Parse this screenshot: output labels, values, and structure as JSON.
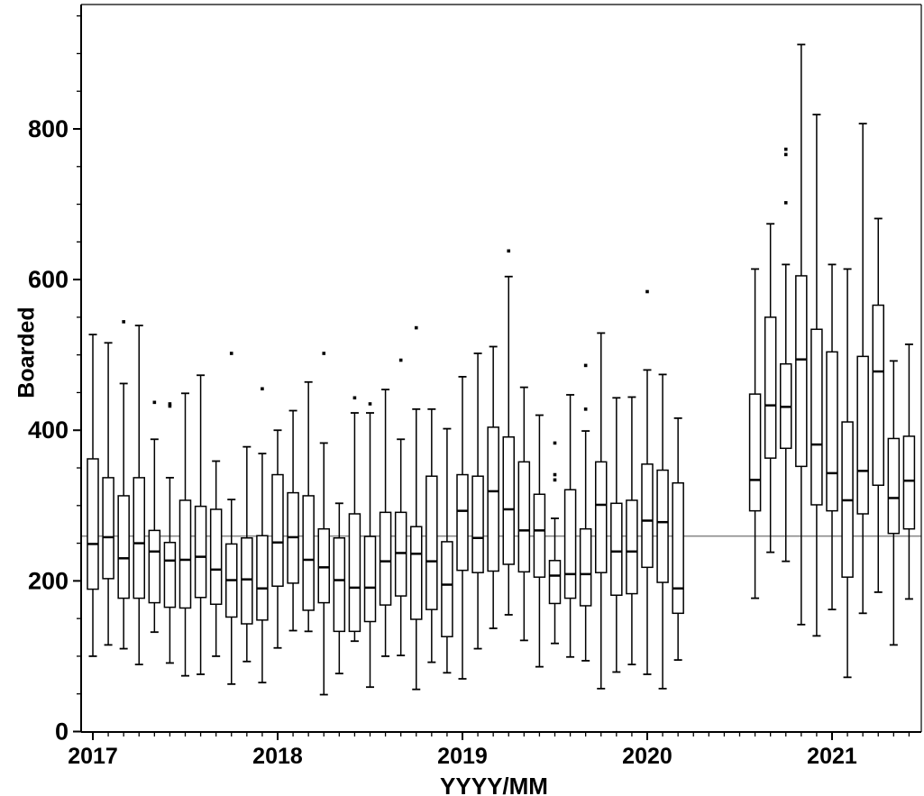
{
  "chart_data": {
    "type": "box",
    "title": "",
    "xlabel": "YYYY/MM",
    "ylabel": "Boarded",
    "ylim": [
      0,
      965
    ],
    "y_ticks": [
      0,
      200,
      400,
      600,
      800
    ],
    "y_minor_step": 50,
    "y_minor_max": 950,
    "x_year_ticks": [
      "2017",
      "2018",
      "2019",
      "2020",
      "2021"
    ],
    "x_month_count": 54,
    "grid": "off",
    "legend": "none",
    "reference_line": {
      "value": 259.5,
      "color": "#8c8c8c"
    },
    "frame_color": "#000000",
    "box_color": "#000000",
    "box_fill": "#ffffff",
    "boxes": [
      {
        "month": "2017/01",
        "min": 100,
        "q1": 189,
        "median": 249,
        "q3": 362,
        "max": 527,
        "outliers": []
      },
      {
        "month": "2017/02",
        "min": 115,
        "q1": 203,
        "median": 258,
        "q3": 337,
        "max": 516,
        "outliers": []
      },
      {
        "month": "2017/03",
        "min": 110,
        "q1": 177,
        "median": 230,
        "q3": 313,
        "max": 462,
        "outliers": [
          544
        ]
      },
      {
        "month": "2017/04",
        "min": 89,
        "q1": 177,
        "median": 250,
        "q3": 337,
        "max": 539,
        "outliers": []
      },
      {
        "month": "2017/05",
        "min": 132,
        "q1": 171,
        "median": 239,
        "q3": 267,
        "max": 388,
        "outliers": [
          437
        ]
      },
      {
        "month": "2017/06",
        "min": 91,
        "q1": 165,
        "median": 227,
        "q3": 251,
        "max": 337,
        "outliers": [
          435,
          432
        ]
      },
      {
        "month": "2017/07",
        "min": 74,
        "q1": 164,
        "median": 228,
        "q3": 307,
        "max": 449,
        "outliers": []
      },
      {
        "month": "2017/08",
        "min": 76,
        "q1": 178,
        "median": 232,
        "q3": 299,
        "max": 473,
        "outliers": []
      },
      {
        "month": "2017/09",
        "min": 100,
        "q1": 169,
        "median": 215,
        "q3": 295,
        "max": 359,
        "outliers": []
      },
      {
        "month": "2017/10",
        "min": 63,
        "q1": 152,
        "median": 201,
        "q3": 249,
        "max": 308,
        "outliers": [
          502
        ]
      },
      {
        "month": "2017/11",
        "min": 93,
        "q1": 143,
        "median": 202,
        "q3": 257,
        "max": 378,
        "outliers": []
      },
      {
        "month": "2017/12",
        "min": 65,
        "q1": 148,
        "median": 190,
        "q3": 260,
        "max": 369,
        "outliers": [
          455
        ]
      },
      {
        "month": "2018/01",
        "min": 111,
        "q1": 193,
        "median": 251,
        "q3": 341,
        "max": 400,
        "outliers": []
      },
      {
        "month": "2018/02",
        "min": 134,
        "q1": 197,
        "median": 258,
        "q3": 317,
        "max": 426,
        "outliers": []
      },
      {
        "month": "2018/03",
        "min": 133,
        "q1": 161,
        "median": 228,
        "q3": 313,
        "max": 464,
        "outliers": []
      },
      {
        "month": "2018/04",
        "min": 49,
        "q1": 171,
        "median": 218,
        "q3": 269,
        "max": 383,
        "outliers": [
          502
        ]
      },
      {
        "month": "2018/05",
        "min": 77,
        "q1": 133,
        "median": 201,
        "q3": 257,
        "max": 303,
        "outliers": []
      },
      {
        "month": "2018/06",
        "min": 120,
        "q1": 133,
        "median": 191,
        "q3": 289,
        "max": 423,
        "outliers": [
          443
        ]
      },
      {
        "month": "2018/07",
        "min": 59,
        "q1": 146,
        "median": 191,
        "q3": 259,
        "max": 423,
        "outliers": [
          435
        ]
      },
      {
        "month": "2018/08",
        "min": 100,
        "q1": 168,
        "median": 226,
        "q3": 291,
        "max": 454,
        "outliers": []
      },
      {
        "month": "2018/09",
        "min": 101,
        "q1": 180,
        "median": 237,
        "q3": 291,
        "max": 388,
        "outliers": [
          493
        ]
      },
      {
        "month": "2018/10",
        "min": 56,
        "q1": 149,
        "median": 236,
        "q3": 272,
        "max": 428,
        "outliers": [
          536
        ]
      },
      {
        "month": "2018/11",
        "min": 92,
        "q1": 162,
        "median": 226,
        "q3": 339,
        "max": 428,
        "outliers": []
      },
      {
        "month": "2018/12",
        "min": 78,
        "q1": 126,
        "median": 195,
        "q3": 252,
        "max": 402,
        "outliers": []
      },
      {
        "month": "2019/01",
        "min": 70,
        "q1": 214,
        "median": 293,
        "q3": 341,
        "max": 471,
        "outliers": []
      },
      {
        "month": "2019/02",
        "min": 110,
        "q1": 211,
        "median": 257,
        "q3": 339,
        "max": 502,
        "outliers": []
      },
      {
        "month": "2019/03",
        "min": 137,
        "q1": 213,
        "median": 319,
        "q3": 404,
        "max": 511,
        "outliers": []
      },
      {
        "month": "2019/04",
        "min": 155,
        "q1": 222,
        "median": 295,
        "q3": 391,
        "max": 604,
        "outliers": [
          638
        ]
      },
      {
        "month": "2019/05",
        "min": 121,
        "q1": 212,
        "median": 267,
        "q3": 358,
        "max": 457,
        "outliers": []
      },
      {
        "month": "2019/06",
        "min": 86,
        "q1": 205,
        "median": 267,
        "q3": 315,
        "max": 420,
        "outliers": []
      },
      {
        "month": "2019/07",
        "min": 117,
        "q1": 170,
        "median": 207,
        "q3": 227,
        "max": 283,
        "outliers": [
          383,
          341,
          334
        ]
      },
      {
        "month": "2019/08",
        "min": 99,
        "q1": 177,
        "median": 209,
        "q3": 321,
        "max": 447,
        "outliers": []
      },
      {
        "month": "2019/09",
        "min": 94,
        "q1": 167,
        "median": 209,
        "q3": 269,
        "max": 399,
        "outliers": [
          486,
          428
        ]
      },
      {
        "month": "2019/10",
        "min": 57,
        "q1": 211,
        "median": 301,
        "q3": 358,
        "max": 529,
        "outliers": []
      },
      {
        "month": "2019/11",
        "min": 79,
        "q1": 181,
        "median": 239,
        "q3": 303,
        "max": 443,
        "outliers": []
      },
      {
        "month": "2019/12",
        "min": 89,
        "q1": 183,
        "median": 239,
        "q3": 307,
        "max": 444,
        "outliers": []
      },
      {
        "month": "2020/01",
        "min": 76,
        "q1": 218,
        "median": 280,
        "q3": 355,
        "max": 480,
        "outliers": [
          584
        ]
      },
      {
        "month": "2020/02",
        "min": 57,
        "q1": 198,
        "median": 278,
        "q3": 347,
        "max": 474,
        "outliers": []
      },
      {
        "month": "2020/03",
        "min": 95,
        "q1": 157,
        "median": 190,
        "q3": 330,
        "max": 416,
        "outliers": []
      },
      {
        "month": "2020/08",
        "min": 177,
        "q1": 293,
        "median": 334,
        "q3": 448,
        "max": 614,
        "outliers": []
      },
      {
        "month": "2020/09",
        "min": 238,
        "q1": 363,
        "median": 433,
        "q3": 550,
        "max": 674,
        "outliers": []
      },
      {
        "month": "2020/10",
        "min": 226,
        "q1": 376,
        "median": 431,
        "q3": 488,
        "max": 620,
        "outliers": [
          773,
          766,
          702
        ]
      },
      {
        "month": "2020/11",
        "min": 142,
        "q1": 352,
        "median": 494,
        "q3": 605,
        "max": 912,
        "outliers": []
      },
      {
        "month": "2020/12",
        "min": 127,
        "q1": 301,
        "median": 381,
        "q3": 534,
        "max": 819,
        "outliers": []
      },
      {
        "month": "2021/01",
        "min": 162,
        "q1": 293,
        "median": 343,
        "q3": 504,
        "max": 620,
        "outliers": []
      },
      {
        "month": "2021/02",
        "min": 72,
        "q1": 205,
        "median": 307,
        "q3": 411,
        "max": 614,
        "outliers": []
      },
      {
        "month": "2021/03",
        "min": 157,
        "q1": 289,
        "median": 346,
        "q3": 498,
        "max": 807,
        "outliers": []
      },
      {
        "month": "2021/04",
        "min": 185,
        "q1": 327,
        "median": 478,
        "q3": 566,
        "max": 681,
        "outliers": []
      },
      {
        "month": "2021/05",
        "min": 115,
        "q1": 263,
        "median": 310,
        "q3": 389,
        "max": 492,
        "outliers": []
      },
      {
        "month": "2021/06",
        "min": 176,
        "q1": 269,
        "median": 333,
        "q3": 392,
        "max": 514,
        "outliers": []
      }
    ]
  }
}
